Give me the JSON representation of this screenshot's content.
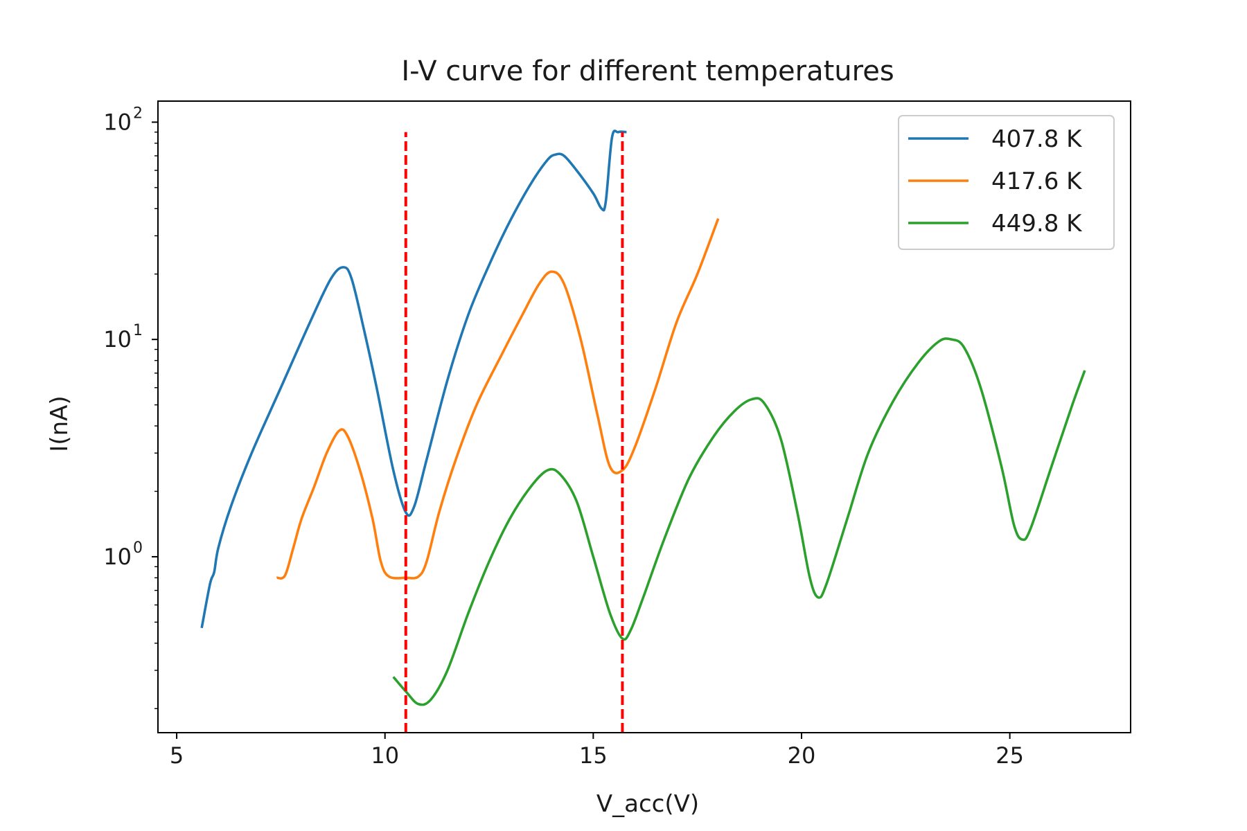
{
  "chart_data": {
    "type": "line",
    "title": "I-V curve for different temperatures",
    "xlabel": "V_acc(V)",
    "ylabel": "I(nA)",
    "x_scale": "linear",
    "y_scale": "log",
    "xlim": [
      4.55,
      27.9
    ],
    "ylim": [
      0.155,
      125
    ],
    "x_ticks": [
      5,
      10,
      15,
      20,
      25
    ],
    "x_tick_labels": [
      "5",
      "10",
      "15",
      "20",
      "25"
    ],
    "y_ticks": [
      1,
      10,
      100
    ],
    "y_tick_labels": [
      {
        "base": "10",
        "exp": "0"
      },
      {
        "base": "10",
        "exp": "1"
      },
      {
        "base": "10",
        "exp": "2"
      }
    ],
    "grid": false,
    "legend_position": "top-right",
    "series": [
      {
        "name": "407.8 K",
        "color": "#1f77b4",
        "points": [
          [
            5.6,
            0.47
          ],
          [
            5.8,
            0.75
          ],
          [
            5.9,
            0.85
          ],
          [
            6.0,
            1.1
          ],
          [
            6.3,
            1.7
          ],
          [
            6.8,
            3.0
          ],
          [
            7.5,
            6.0
          ],
          [
            8.2,
            12.0
          ],
          [
            8.7,
            19.0
          ],
          [
            9.0,
            21.5
          ],
          [
            9.2,
            19.0
          ],
          [
            9.5,
            11.0
          ],
          [
            9.8,
            6.0
          ],
          [
            10.2,
            2.5
          ],
          [
            10.5,
            1.6
          ],
          [
            10.7,
            1.7
          ],
          [
            11.0,
            2.8
          ],
          [
            11.5,
            6.5
          ],
          [
            12.0,
            13.0
          ],
          [
            12.5,
            22.0
          ],
          [
            13.0,
            35.0
          ],
          [
            13.5,
            52.0
          ],
          [
            13.9,
            67.0
          ],
          [
            14.1,
            71.0
          ],
          [
            14.3,
            70.0
          ],
          [
            14.6,
            60.0
          ],
          [
            15.0,
            47.0
          ],
          [
            15.2,
            40.0
          ],
          [
            15.3,
            43.0
          ],
          [
            15.45,
            85.0
          ],
          [
            15.6,
            90.0
          ],
          [
            15.8,
            90.0
          ]
        ]
      },
      {
        "name": "417.6 K",
        "color": "#ff7f0e",
        "points": [
          [
            7.4,
            0.8
          ],
          [
            7.6,
            0.82
          ],
          [
            7.8,
            1.1
          ],
          [
            8.0,
            1.5
          ],
          [
            8.3,
            2.1
          ],
          [
            8.6,
            3.0
          ],
          [
            8.9,
            3.8
          ],
          [
            9.1,
            3.6
          ],
          [
            9.4,
            2.5
          ],
          [
            9.7,
            1.5
          ],
          [
            9.9,
            0.95
          ],
          [
            10.1,
            0.81
          ],
          [
            10.5,
            0.8
          ],
          [
            10.8,
            0.81
          ],
          [
            11.0,
            0.95
          ],
          [
            11.3,
            1.6
          ],
          [
            11.7,
            2.8
          ],
          [
            12.2,
            5.0
          ],
          [
            12.8,
            8.5
          ],
          [
            13.3,
            13.0
          ],
          [
            13.7,
            18.0
          ],
          [
            14.0,
            20.5
          ],
          [
            14.3,
            18.0
          ],
          [
            14.7,
            10.0
          ],
          [
            15.1,
            4.5
          ],
          [
            15.4,
            2.6
          ],
          [
            15.7,
            2.5
          ],
          [
            16.0,
            3.2
          ],
          [
            16.5,
            6.0
          ],
          [
            17.0,
            12.0
          ],
          [
            17.5,
            20.0
          ],
          [
            18.0,
            36.0
          ]
        ]
      },
      {
        "name": "449.8 K",
        "color": "#2ca02c",
        "points": [
          [
            10.2,
            0.28
          ],
          [
            10.5,
            0.24
          ],
          [
            10.8,
            0.21
          ],
          [
            11.1,
            0.22
          ],
          [
            11.5,
            0.3
          ],
          [
            12.0,
            0.55
          ],
          [
            12.5,
            0.95
          ],
          [
            13.0,
            1.5
          ],
          [
            13.5,
            2.1
          ],
          [
            13.9,
            2.5
          ],
          [
            14.2,
            2.4
          ],
          [
            14.6,
            1.8
          ],
          [
            15.0,
            1.0
          ],
          [
            15.4,
            0.55
          ],
          [
            15.7,
            0.42
          ],
          [
            15.9,
            0.46
          ],
          [
            16.2,
            0.65
          ],
          [
            16.7,
            1.2
          ],
          [
            17.3,
            2.3
          ],
          [
            17.9,
            3.6
          ],
          [
            18.4,
            4.7
          ],
          [
            18.8,
            5.3
          ],
          [
            19.1,
            5.1
          ],
          [
            19.5,
            3.5
          ],
          [
            19.9,
            1.6
          ],
          [
            20.2,
            0.8
          ],
          [
            20.4,
            0.65
          ],
          [
            20.6,
            0.75
          ],
          [
            21.1,
            1.5
          ],
          [
            21.6,
            3.0
          ],
          [
            22.2,
            5.2
          ],
          [
            22.8,
            7.8
          ],
          [
            23.3,
            9.8
          ],
          [
            23.6,
            10.0
          ],
          [
            23.9,
            9.2
          ],
          [
            24.3,
            6.0
          ],
          [
            24.8,
            2.6
          ],
          [
            25.1,
            1.4
          ],
          [
            25.3,
            1.2
          ],
          [
            25.5,
            1.35
          ],
          [
            26.0,
            2.6
          ],
          [
            26.5,
            5.0
          ],
          [
            26.8,
            7.2
          ]
        ]
      }
    ],
    "reference_lines": [
      {
        "x": 10.5,
        "y_range": [
          0.155,
          90
        ],
        "color": "#ff0000",
        "style": "dashed"
      },
      {
        "x": 15.7,
        "y_range": [
          0.155,
          90
        ],
        "color": "#ff0000",
        "style": "dashed"
      }
    ]
  }
}
